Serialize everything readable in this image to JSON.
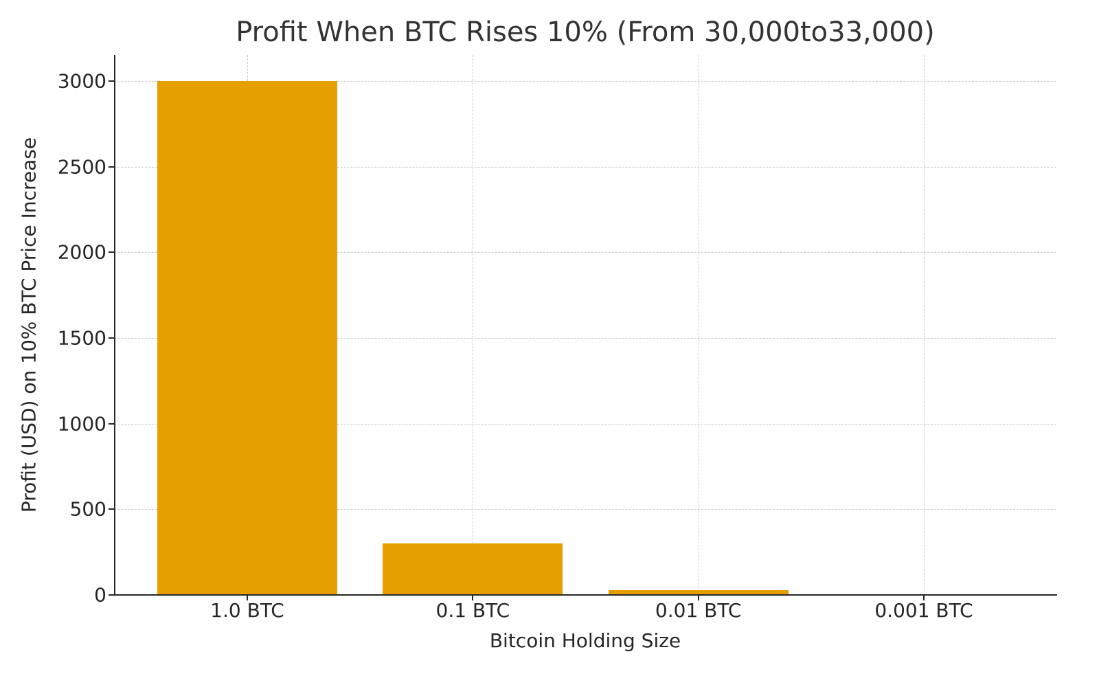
{
  "chart_data": {
    "type": "bar",
    "title": "Profit When BTC Rises 10% (From 30,000to33,000)",
    "xlabel": "Bitcoin Holding Size",
    "ylabel": "Profit (USD) on 10% BTC Price Increase",
    "categories": [
      "1.0 BTC",
      "0.1 BTC",
      "0.01 BTC",
      "0.001 BTC"
    ],
    "values": [
      3000,
      300,
      30,
      3
    ],
    "ylim": [
      0,
      3150
    ],
    "yticks": [
      "0",
      "500",
      "1000",
      "1500",
      "2000",
      "2500",
      "3000"
    ],
    "grid": true,
    "bar_color": "#e69f00",
    "legend": null
  }
}
